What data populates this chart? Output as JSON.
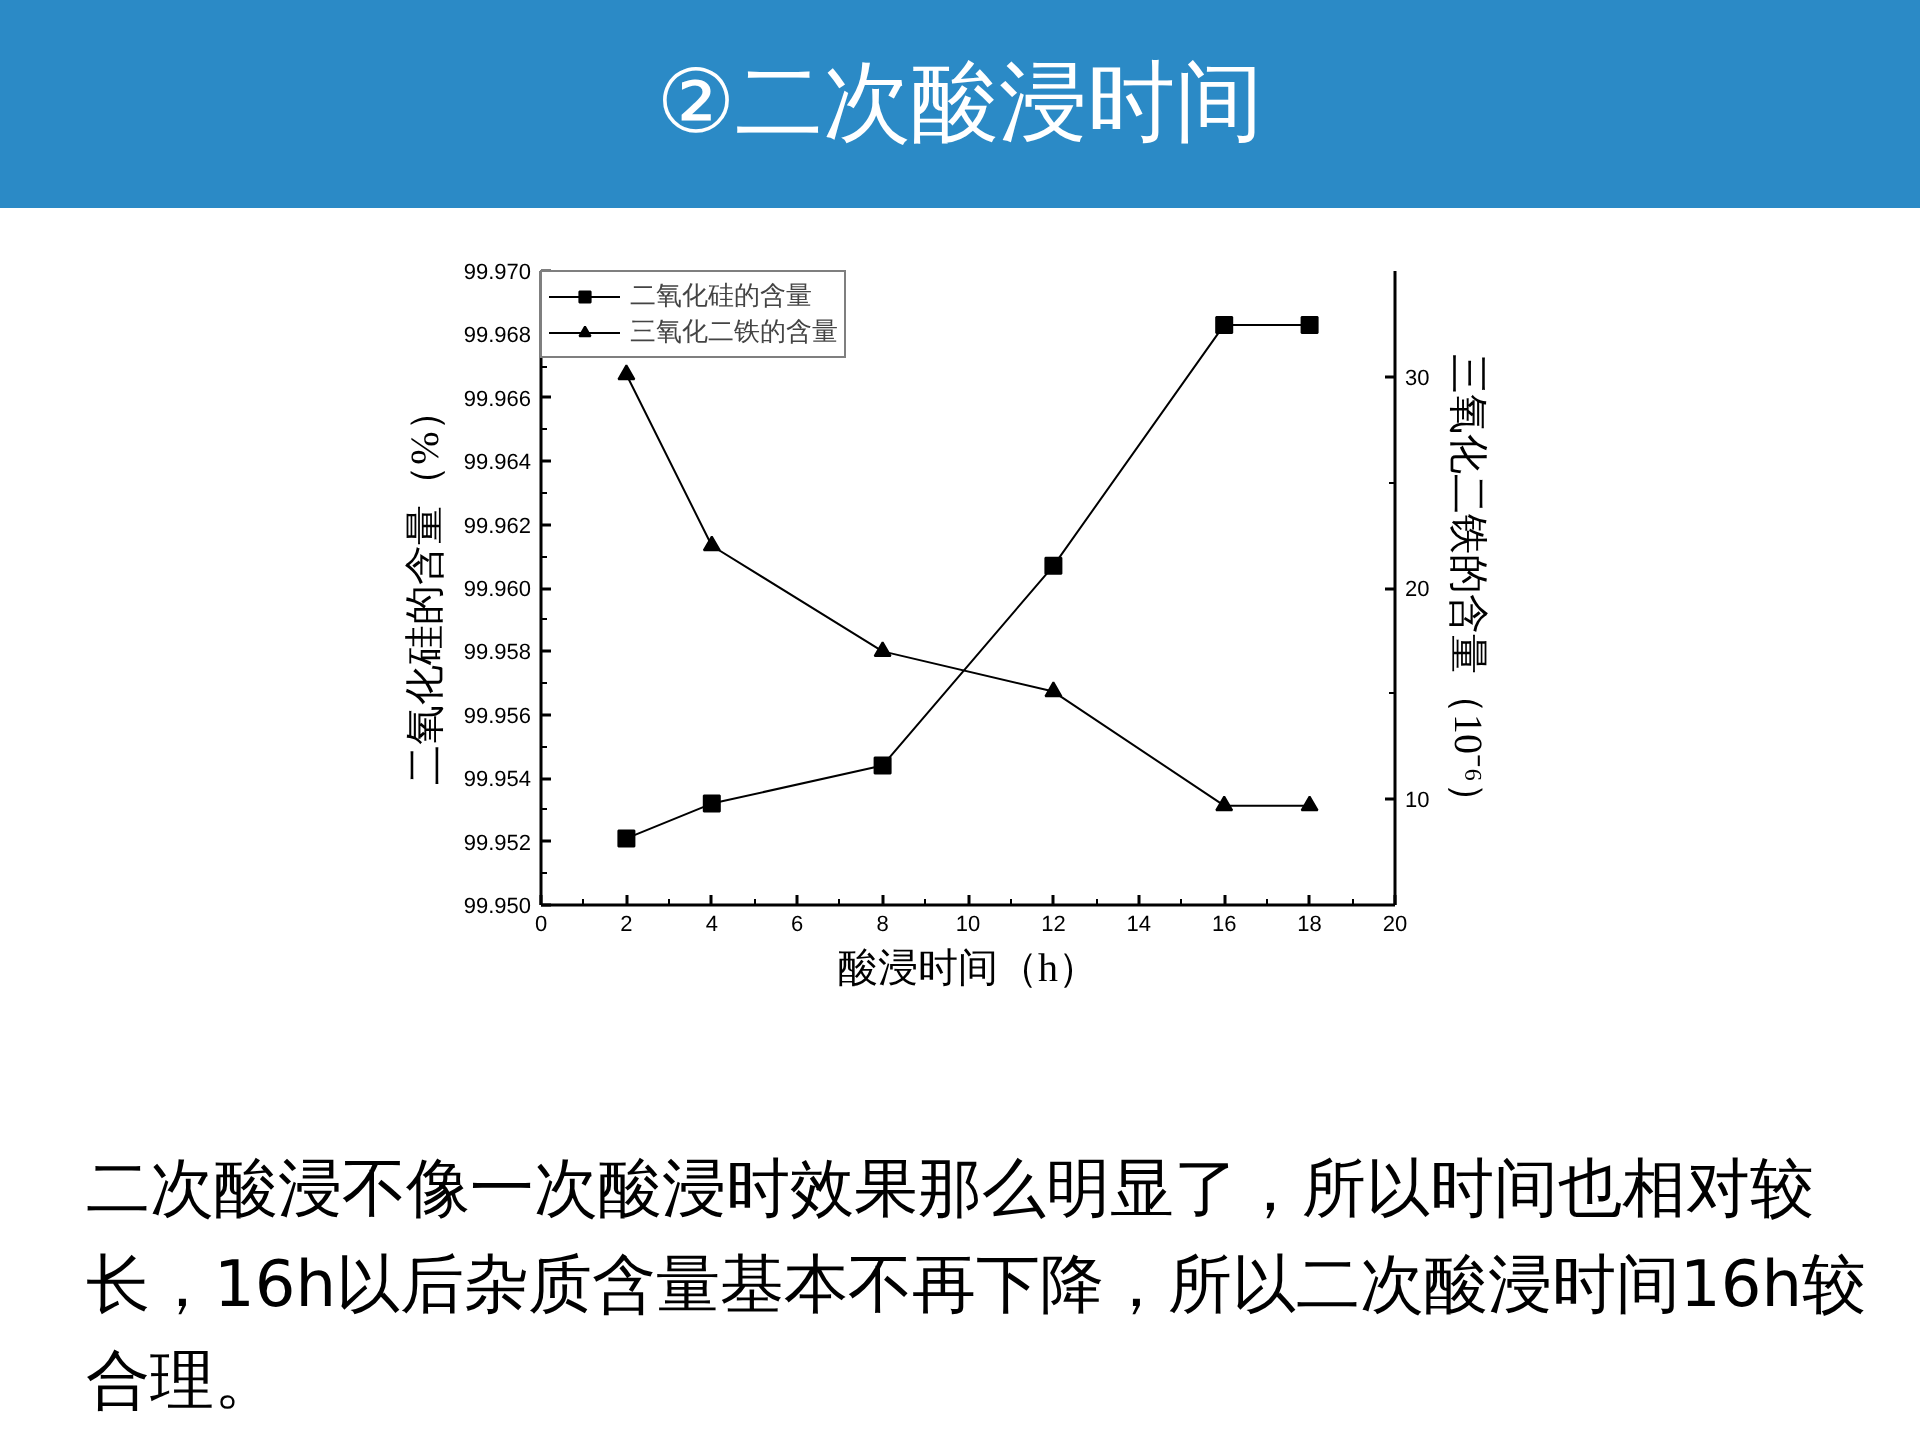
{
  "chart_data": {
    "type": "line",
    "title": "②二次酸浸时间",
    "xlabel": "酸浸时间（h）",
    "ylabel": "二氧化硅的含量（%）",
    "y2label": "三氧化二铁的含量（10⁻⁶）",
    "x": [
      2,
      4,
      8,
      12,
      16,
      18
    ],
    "series": [
      {
        "name": "二氧化硅的含量",
        "color": "#000000",
        "marker": "square",
        "values": [
          99.9521,
          99.9532,
          99.9544,
          99.9607,
          99.9683,
          99.9683
        ]
      },
      {
        "name": "三氧化二铁的含量",
        "color": "#000000",
        "marker": "triangle",
        "axis": "y2",
        "values": [
          30.1,
          22.0,
          17.0,
          15.1,
          9.7,
          9.7
        ]
      }
    ],
    "xlim": [
      0,
      20
    ],
    "xticks": [
      0,
      {
        "value": 1,
        "label": null
      },
      2,
      {
        "value": 3,
        "label": null
      },
      4,
      {
        "value": 5,
        "label": null
      },
      6,
      {
        "value": 7,
        "label": null
      },
      8,
      {
        "value": 9,
        "label": null
      },
      10,
      {
        "value": 11,
        "label": null
      },
      12,
      {
        "value": 13,
        "label": null
      },
      14,
      {
        "value": 15,
        "label": null
      },
      16,
      {
        "value": 17,
        "label": null
      },
      18,
      {
        "value": 19,
        "label": null
      },
      20
    ],
    "ylim": [
      99.95,
      99.97
    ],
    "yticks": [
      {
        "value": 99.95,
        "label": "99.950"
      },
      {
        "value": 99.951,
        "label": null
      },
      99.952,
      {
        "value": 99.953,
        "label": null
      },
      99.954,
      {
        "value": 99.955,
        "label": null
      },
      99.956,
      {
        "value": 99.957,
        "label": null
      },
      99.958,
      {
        "value": 99.959,
        "label": null
      },
      {
        "value": 99.96,
        "label": "99.960"
      },
      {
        "value": 99.961,
        "label": null
      },
      99.962,
      {
        "value": 99.963,
        "label": null
      },
      99.964,
      {
        "value": 99.965,
        "label": null
      },
      99.966,
      {
        "value": 99.967,
        "label": null
      },
      99.968,
      {
        "value": 99.969,
        "label": null
      },
      {
        "value": 99.97,
        "label": "99.970"
      }
    ],
    "y2lim": [
      5,
      35
    ],
    "y2ticks": [
      10,
      {
        "value": 15,
        "label": null
      },
      20,
      {
        "value": 25,
        "label": null
      },
      30
    ],
    "legend": "top left",
    "line_style": "solid",
    "annotations": [
      "二次酸浸不像一次酸浸时效果那么明显了，所以时间也相对较长，16h以后杂质含量基本不再下降，所以二次酸浸时间16h较合理。"
    ]
  }
}
